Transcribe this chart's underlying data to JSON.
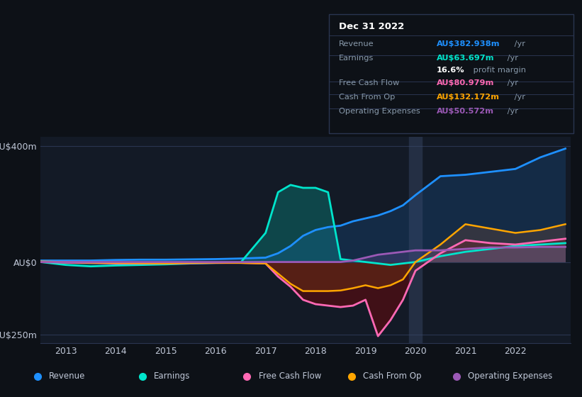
{
  "background_color": "#0d1117",
  "plot_bg_color": "#131a26",
  "grid_color": "#2a3550",
  "text_color": "#c0c8d8",
  "title_text": "Dec 31 2022",
  "years": [
    2012.5,
    2013,
    2013.5,
    2014,
    2014.5,
    2015,
    2015.5,
    2016,
    2016.5,
    2017,
    2017.25,
    2017.5,
    2017.75,
    2018,
    2018.25,
    2018.5,
    2018.75,
    2019,
    2019.25,
    2019.5,
    2019.75,
    2020,
    2020.5,
    2021,
    2021.5,
    2022,
    2022.5,
    2023
  ],
  "revenue": [
    5,
    5,
    5,
    7,
    8,
    8,
    9,
    10,
    12,
    15,
    30,
    55,
    90,
    110,
    120,
    125,
    140,
    150,
    160,
    175,
    195,
    230,
    295,
    300,
    310,
    320,
    360,
    390
  ],
  "earnings": [
    0,
    -10,
    -15,
    -12,
    -10,
    -8,
    -5,
    -3,
    -2,
    100,
    240,
    265,
    255,
    255,
    240,
    10,
    5,
    0,
    -5,
    -10,
    -5,
    0,
    20,
    35,
    45,
    55,
    60,
    65
  ],
  "free_cash_flow": [
    0,
    -2,
    -3,
    -5,
    -5,
    -5,
    -4,
    -3,
    -3,
    -5,
    -50,
    -85,
    -130,
    -145,
    -150,
    -155,
    -150,
    -130,
    -255,
    -200,
    -130,
    -30,
    30,
    75,
    65,
    60,
    70,
    80
  ],
  "cash_from_op": [
    2,
    0,
    -2,
    -3,
    -4,
    -5,
    -3,
    -2,
    -3,
    -5,
    -40,
    -75,
    -100,
    -100,
    -100,
    -98,
    -90,
    -80,
    -90,
    -80,
    -60,
    0,
    60,
    130,
    115,
    100,
    110,
    130
  ],
  "operating_expenses": [
    0,
    0,
    0,
    0,
    0,
    0,
    0,
    0,
    0,
    0,
    0,
    0,
    0,
    0,
    0,
    0,
    5,
    15,
    25,
    30,
    35,
    40,
    40,
    45,
    50,
    50,
    52,
    52
  ],
  "ylim": [
    -280,
    430
  ],
  "yticks": [
    -250,
    0,
    400
  ],
  "ytick_labels": [
    "-AU$250m",
    "AU$0",
    "AU$400m"
  ],
  "xticks": [
    2013,
    2014,
    2015,
    2016,
    2017,
    2018,
    2019,
    2020,
    2021,
    2022
  ],
  "info_rows": [
    {
      "label": "Revenue",
      "value": "AU$382.938m",
      "unit": " /yr",
      "color": "#1e90ff",
      "sep_below": true
    },
    {
      "label": "Earnings",
      "value": "AU$63.697m",
      "unit": " /yr",
      "color": "#00e5cc",
      "sep_below": false
    },
    {
      "label": "",
      "value": "16.6%",
      "unit": " profit margin",
      "color": "#ffffff",
      "sep_below": true
    },
    {
      "label": "Free Cash Flow",
      "value": "AU$80.979m",
      "unit": " /yr",
      "color": "#ff69b4",
      "sep_below": true
    },
    {
      "label": "Cash From Op",
      "value": "AU$132.172m",
      "unit": " /yr",
      "color": "#ffa500",
      "sep_below": true
    },
    {
      "label": "Operating Expenses",
      "value": "AU$50.572m",
      "unit": " /yr",
      "color": "#9b59b6",
      "sep_below": false
    }
  ],
  "legend": [
    {
      "label": "Revenue",
      "color": "#1e90ff"
    },
    {
      "label": "Earnings",
      "color": "#00e5cc"
    },
    {
      "label": "Free Cash Flow",
      "color": "#ff69b4"
    },
    {
      "label": "Cash From Op",
      "color": "#ffa500"
    },
    {
      "label": "Operating Expenses",
      "color": "#9b59b6"
    }
  ]
}
